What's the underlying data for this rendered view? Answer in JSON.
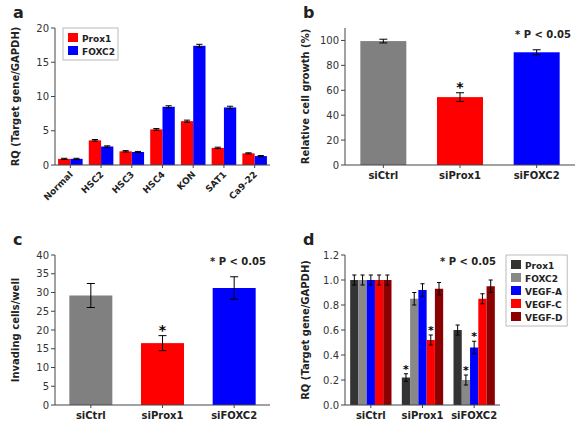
{
  "chart_data": [
    {
      "type": "bar",
      "title": "a",
      "categories": [
        "Normal",
        "HSC2",
        "HSC3",
        "HSC4",
        "KON",
        "SAT1",
        "Ca9-22"
      ],
      "series": [
        {
          "name": "Prox1",
          "color": "#ff0000",
          "values": [
            0.9,
            3.6,
            2.0,
            5.2,
            6.4,
            2.5,
            1.7
          ],
          "errors": [
            0.08,
            0.12,
            0.1,
            0.12,
            0.15,
            0.1,
            0.08
          ]
        },
        {
          "name": "FOXC2",
          "color": "#0000ff",
          "values": [
            0.9,
            2.7,
            1.9,
            8.5,
            17.4,
            8.4,
            1.3
          ],
          "errors": [
            0.08,
            0.1,
            0.08,
            0.15,
            0.22,
            0.18,
            0.08
          ]
        }
      ],
      "ylabel": "RQ (Target gene/GAPDH)",
      "ylim": [
        0,
        20
      ],
      "yticks": [
        0,
        5,
        10,
        15,
        20
      ],
      "legend": "upper left"
    },
    {
      "type": "bar",
      "title": "b",
      "categories": [
        "siCtrl",
        "siProx1",
        "siFOXC2"
      ],
      "values": [
        99.5,
        54.5,
        90.5
      ],
      "errors": [
        1.5,
        3.5,
        2.0
      ],
      "colors": [
        "#808080",
        "#ff0000",
        "#0000ff"
      ],
      "ylabel": "Relative cell growth (%)",
      "ylim": [
        0,
        110
      ],
      "yticks": [
        0,
        20,
        40,
        60,
        80,
        100
      ],
      "annotation": "* P < 0.05",
      "star": "*",
      "starred": [
        "siProx1"
      ]
    },
    {
      "type": "bar",
      "title": "c",
      "categories": [
        "siCtrl",
        "siProx1",
        "siFOXC2"
      ],
      "values": [
        29.2,
        16.5,
        31.2
      ],
      "errors": [
        3.2,
        2.0,
        3.0
      ],
      "colors": [
        "#808080",
        "#ff0000",
        "#0000ff"
      ],
      "ylabel": "Invading cells/well",
      "ylim": [
        0,
        40
      ],
      "yticks": [
        0,
        5,
        10,
        15,
        20,
        25,
        30,
        35,
        40
      ],
      "annotation": "* P < 0.05",
      "star": "*",
      "starred": [
        "siProx1"
      ]
    },
    {
      "type": "bar",
      "title": "d",
      "categories": [
        "siCtrl",
        "siProx1",
        "siFOXC2"
      ],
      "series": [
        {
          "name": "Prox1",
          "color": "#333333",
          "values": [
            1.0,
            0.22,
            0.6
          ],
          "errors": [
            0.04,
            0.03,
            0.04
          ]
        },
        {
          "name": "FOXC2",
          "color": "#888888",
          "values": [
            1.0,
            0.85,
            0.2
          ],
          "errors": [
            0.04,
            0.05,
            0.04
          ]
        },
        {
          "name": "VEGF-A",
          "color": "#0000ff",
          "values": [
            1.0,
            0.92,
            0.46
          ],
          "errors": [
            0.04,
            0.05,
            0.05
          ]
        },
        {
          "name": "VEGF-C",
          "color": "#ff0000",
          "values": [
            1.0,
            0.52,
            0.85
          ],
          "errors": [
            0.04,
            0.04,
            0.04
          ]
        },
        {
          "name": "VEGF-D",
          "color": "#8B0000",
          "values": [
            1.0,
            0.93,
            0.95
          ],
          "errors": [
            0.04,
            0.05,
            0.05
          ]
        }
      ],
      "ylabel": "RQ (Target gene/GAPDH)",
      "ylim": [
        0,
        1.2
      ],
      "yticks": [
        {
          "value": 0,
          "label": "0.0"
        },
        0.2,
        0.4,
        0.6,
        0.8,
        {
          "value": 1,
          "label": "1.0"
        },
        1.2
      ],
      "annotation": "* P < 0.05",
      "legend": "upper right",
      "star": "*",
      "starred": [
        {
          "category": "siProx1",
          "series": "Prox1"
        },
        {
          "category": "siProx1",
          "series": "VEGF-C"
        },
        {
          "category": "siFOXC2",
          "series": "FOXC2"
        },
        {
          "category": "siFOXC2",
          "series": "VEGF-A"
        }
      ]
    }
  ]
}
